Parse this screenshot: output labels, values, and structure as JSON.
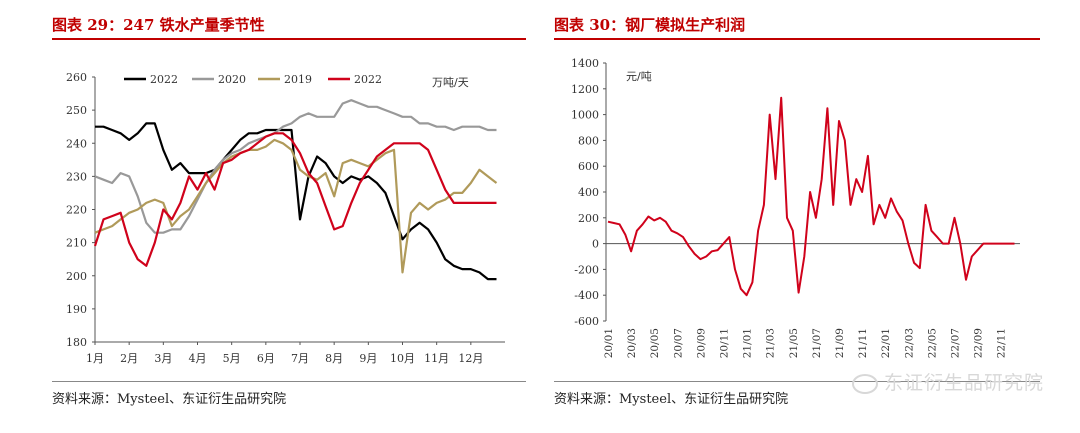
{
  "left": {
    "title": "图表 29：247 铁水产量季节性",
    "source": "资料来源：Mysteel、东证衍生品研究院"
  },
  "right": {
    "title": "图表 30：钢厂模拟生产利润",
    "source": "资料来源：Mysteel、东证衍生品研究院"
  },
  "watermark": "东证衍生品研究院",
  "colors": {
    "title": "#c00000",
    "black": "#000000",
    "gray": "#999999",
    "gold": "#b09a5a",
    "red": "#d0021b"
  },
  "chart_data": [
    {
      "type": "line",
      "title": "",
      "unit": "万吨/天",
      "ylim": [
        180,
        260
      ],
      "yticks": [
        180,
        190,
        200,
        210,
        220,
        230,
        240,
        250,
        260
      ],
      "xlim": [
        1,
        13
      ],
      "xticks": [
        "1月",
        "2月",
        "3月",
        "4月",
        "5月",
        "6月",
        "7月",
        "8月",
        "9月",
        "10月",
        "11月",
        "12月"
      ],
      "legend_position": "top",
      "series": [
        {
          "name": "2022",
          "color": "#000000",
          "x": [
            1,
            1.25,
            1.5,
            1.75,
            2,
            2.25,
            2.5,
            2.75,
            3,
            3.25,
            3.5,
            3.75,
            4,
            4.25,
            4.5,
            4.75,
            5,
            5.25,
            5.5,
            5.75,
            6,
            6.25,
            6.5,
            6.75,
            7,
            7.25,
            7.5,
            7.75,
            8,
            8.25,
            8.5,
            8.75,
            9,
            9.25,
            9.5,
            9.75,
            10,
            10.25,
            10.5,
            10.75,
            11,
            11.25,
            11.5,
            11.75,
            12,
            12.25,
            12.5,
            12.75
          ],
          "y": [
            245,
            245,
            244,
            243,
            241,
            243,
            246,
            246,
            238,
            232,
            234,
            231,
            231,
            231,
            232,
            235,
            238,
            241,
            243,
            243,
            244,
            244,
            244,
            244,
            217,
            230,
            236,
            234,
            230,
            228,
            230,
            229,
            230,
            228,
            225,
            218,
            211,
            214,
            216,
            214,
            210,
            205,
            203,
            202,
            202,
            201,
            199,
            199
          ]
        },
        {
          "name": "2020",
          "color": "#999999",
          "x": [
            1,
            1.25,
            1.5,
            1.75,
            2,
            2.25,
            2.5,
            2.75,
            3,
            3.25,
            3.5,
            3.75,
            4,
            4.25,
            4.5,
            4.75,
            5,
            5.25,
            5.5,
            5.75,
            6,
            6.25,
            6.5,
            6.75,
            7,
            7.25,
            7.5,
            7.75,
            8,
            8.25,
            8.5,
            8.75,
            9,
            9.25,
            9.5,
            9.75,
            10,
            10.25,
            10.5,
            10.75,
            11,
            11.25,
            11.5,
            11.75,
            12,
            12.25,
            12.5,
            12.75
          ],
          "y": [
            230,
            229,
            228,
            231,
            230,
            224,
            216,
            213,
            213,
            214,
            214,
            218,
            223,
            228,
            232,
            235,
            237,
            238,
            240,
            241,
            242,
            243,
            245,
            246,
            248,
            249,
            248,
            248,
            248,
            252,
            253,
            252,
            251,
            251,
            250,
            249,
            248,
            248,
            246,
            246,
            245,
            245,
            244,
            245,
            245,
            245,
            244,
            244
          ]
        },
        {
          "name": "2019",
          "color": "#b09a5a",
          "x": [
            1,
            1.25,
            1.5,
            1.75,
            2,
            2.25,
            2.5,
            2.75,
            3,
            3.25,
            3.5,
            3.75,
            4,
            4.25,
            4.5,
            4.75,
            5,
            5.25,
            5.5,
            5.75,
            6,
            6.25,
            6.5,
            6.75,
            7,
            7.25,
            7.5,
            7.75,
            8,
            8.25,
            8.5,
            8.75,
            9,
            9.25,
            9.5,
            9.75,
            10,
            10.25,
            10.5,
            10.75,
            11,
            11.25,
            11.5,
            11.75,
            12,
            12.25,
            12.5,
            12.75
          ],
          "y": [
            213,
            214,
            215,
            217,
            219,
            220,
            222,
            223,
            222,
            215,
            218,
            220,
            224,
            228,
            231,
            234,
            236,
            237,
            238,
            238,
            239,
            241,
            240,
            238,
            232,
            230,
            229,
            231,
            224,
            234,
            235,
            234,
            233,
            235,
            237,
            238,
            201,
            219,
            222,
            220,
            222,
            223,
            225,
            225,
            228,
            232,
            230,
            228
          ]
        },
        {
          "name": "2022",
          "color": "#d0021b",
          "x": [
            1,
            1.25,
            1.5,
            1.75,
            2,
            2.25,
            2.5,
            2.75,
            3,
            3.25,
            3.5,
            3.75,
            4,
            4.25,
            4.5,
            4.75,
            5,
            5.25,
            5.5,
            5.75,
            6,
            6.25,
            6.5,
            6.75,
            7,
            7.25,
            7.5,
            7.75,
            8,
            8.25,
            8.5,
            8.75,
            9,
            9.25,
            9.5,
            9.75,
            10,
            10.25,
            10.5,
            10.75,
            11,
            11.25,
            11.5,
            11.75,
            12,
            12.25,
            12.5,
            12.75
          ],
          "y": [
            209,
            217,
            218,
            219,
            210,
            205,
            203,
            210,
            220,
            217,
            222,
            230,
            226,
            231,
            226,
            234,
            235,
            237,
            238,
            240,
            242,
            243,
            243,
            241,
            237,
            231,
            228,
            221,
            214,
            215,
            222,
            228,
            232,
            236,
            238,
            240,
            240,
            240,
            240,
            238,
            232,
            226,
            222,
            222,
            222,
            222,
            222,
            222
          ]
        }
      ]
    },
    {
      "type": "line",
      "title": "",
      "unit": "元/吨",
      "ylim": [
        -600,
        1400
      ],
      "yticks": [
        -600,
        -400,
        -200,
        0,
        200,
        400,
        600,
        800,
        1000,
        1200,
        1400
      ],
      "xticks": [
        "20/01",
        "20/03",
        "20/05",
        "20/07",
        "20/09",
        "20/11",
        "21/01",
        "21/03",
        "21/05",
        "21/07",
        "21/09",
        "21/11",
        "22/01",
        "22/03",
        "22/05",
        "22/07",
        "22/09",
        "22/11"
      ],
      "x_unit": "month index (0 = 20/01)",
      "series": [
        {
          "name": "",
          "color": "#d0021b",
          "x": [
            0,
            0.5,
            1,
            1.5,
            2,
            2.5,
            3,
            3.5,
            4,
            4.5,
            5,
            5.5,
            6,
            6.5,
            7,
            7.5,
            8,
            8.5,
            9,
            9.5,
            10,
            10.5,
            11,
            11.5,
            12,
            12.5,
            13,
            13.5,
            14,
            14.5,
            15,
            15.5,
            16,
            16.5,
            17,
            17.5,
            18,
            18.5,
            19,
            19.5,
            20,
            20.5,
            21,
            21.5,
            22,
            22.5,
            23,
            23.5,
            24,
            24.5,
            25,
            25.5,
            26,
            26.5,
            27,
            27.5,
            28,
            28.5,
            29,
            29.5,
            30,
            30.5,
            31,
            31.5,
            32,
            32.5,
            33,
            33.5,
            34,
            34.5,
            35,
            35.2
          ],
          "y": [
            170,
            160,
            150,
            70,
            -60,
            100,
            150,
            210,
            180,
            200,
            170,
            100,
            80,
            50,
            -20,
            -80,
            -120,
            -100,
            -60,
            -50,
            0,
            50,
            -200,
            -350,
            -400,
            -300,
            100,
            300,
            1000,
            500,
            1130,
            200,
            100,
            -380,
            -100,
            400,
            200,
            500,
            1050,
            300,
            950,
            800,
            300,
            500,
            400,
            680,
            150,
            300,
            200,
            350,
            250,
            180,
            0,
            -150,
            -190,
            300,
            100,
            50,
            0,
            0,
            200,
            0,
            -280,
            -100,
            -50,
            0,
            0,
            0,
            0,
            0,
            0,
            0
          ]
        }
      ]
    }
  ]
}
